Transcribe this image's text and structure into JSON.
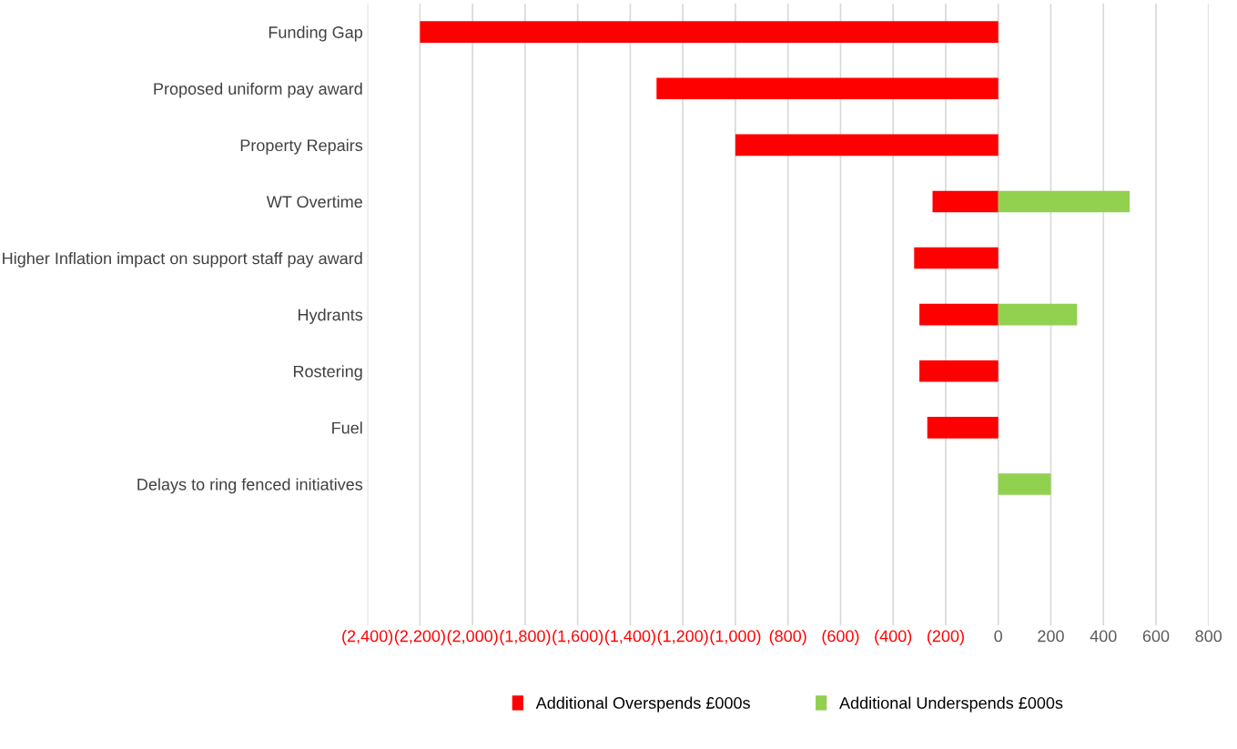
{
  "chart_data": {
    "type": "bar",
    "orientation": "horizontal",
    "categories": [
      "Funding Gap",
      "Proposed uniform pay award",
      "Property Repairs",
      "WT Overtime",
      "Higher Inflation impact on support staff pay award",
      "Hydrants",
      "Rostering",
      "Fuel",
      "Delays to ring fenced initiatives",
      null,
      null
    ],
    "series": [
      {
        "name": "Additional Overspends £000s",
        "color": "#ff0000",
        "values": [
          -2200,
          -1300,
          -1000,
          -250,
          -320,
          -300,
          -300,
          -270,
          null,
          null,
          null
        ]
      },
      {
        "name": "Additional Underspends £000s",
        "color": "#92d050",
        "values": [
          null,
          null,
          null,
          500,
          null,
          300,
          null,
          null,
          200,
          null,
          null
        ]
      }
    ],
    "xlim": [
      -2400,
      800
    ],
    "xticks": [
      {
        "value": -2400,
        "label": "(2,400)"
      },
      {
        "value": -2200,
        "label": "(2,200)"
      },
      {
        "value": -2000,
        "label": "(2,000)"
      },
      {
        "value": -1800,
        "label": "(1,800)"
      },
      {
        "value": -1600,
        "label": "(1,600)"
      },
      {
        "value": -1400,
        "label": "(1,400)"
      },
      {
        "value": -1200,
        "label": "(1,200)"
      },
      {
        "value": -1000,
        "label": "(1,000)"
      },
      {
        "value": -800,
        "label": "(800)"
      },
      {
        "value": -600,
        "label": "(600)"
      },
      {
        "value": -400,
        "label": "(400)"
      },
      {
        "value": -200,
        "label": "(200)"
      },
      0,
      200,
      400,
      600,
      800
    ],
    "grid": "x",
    "legend": "bottom"
  }
}
